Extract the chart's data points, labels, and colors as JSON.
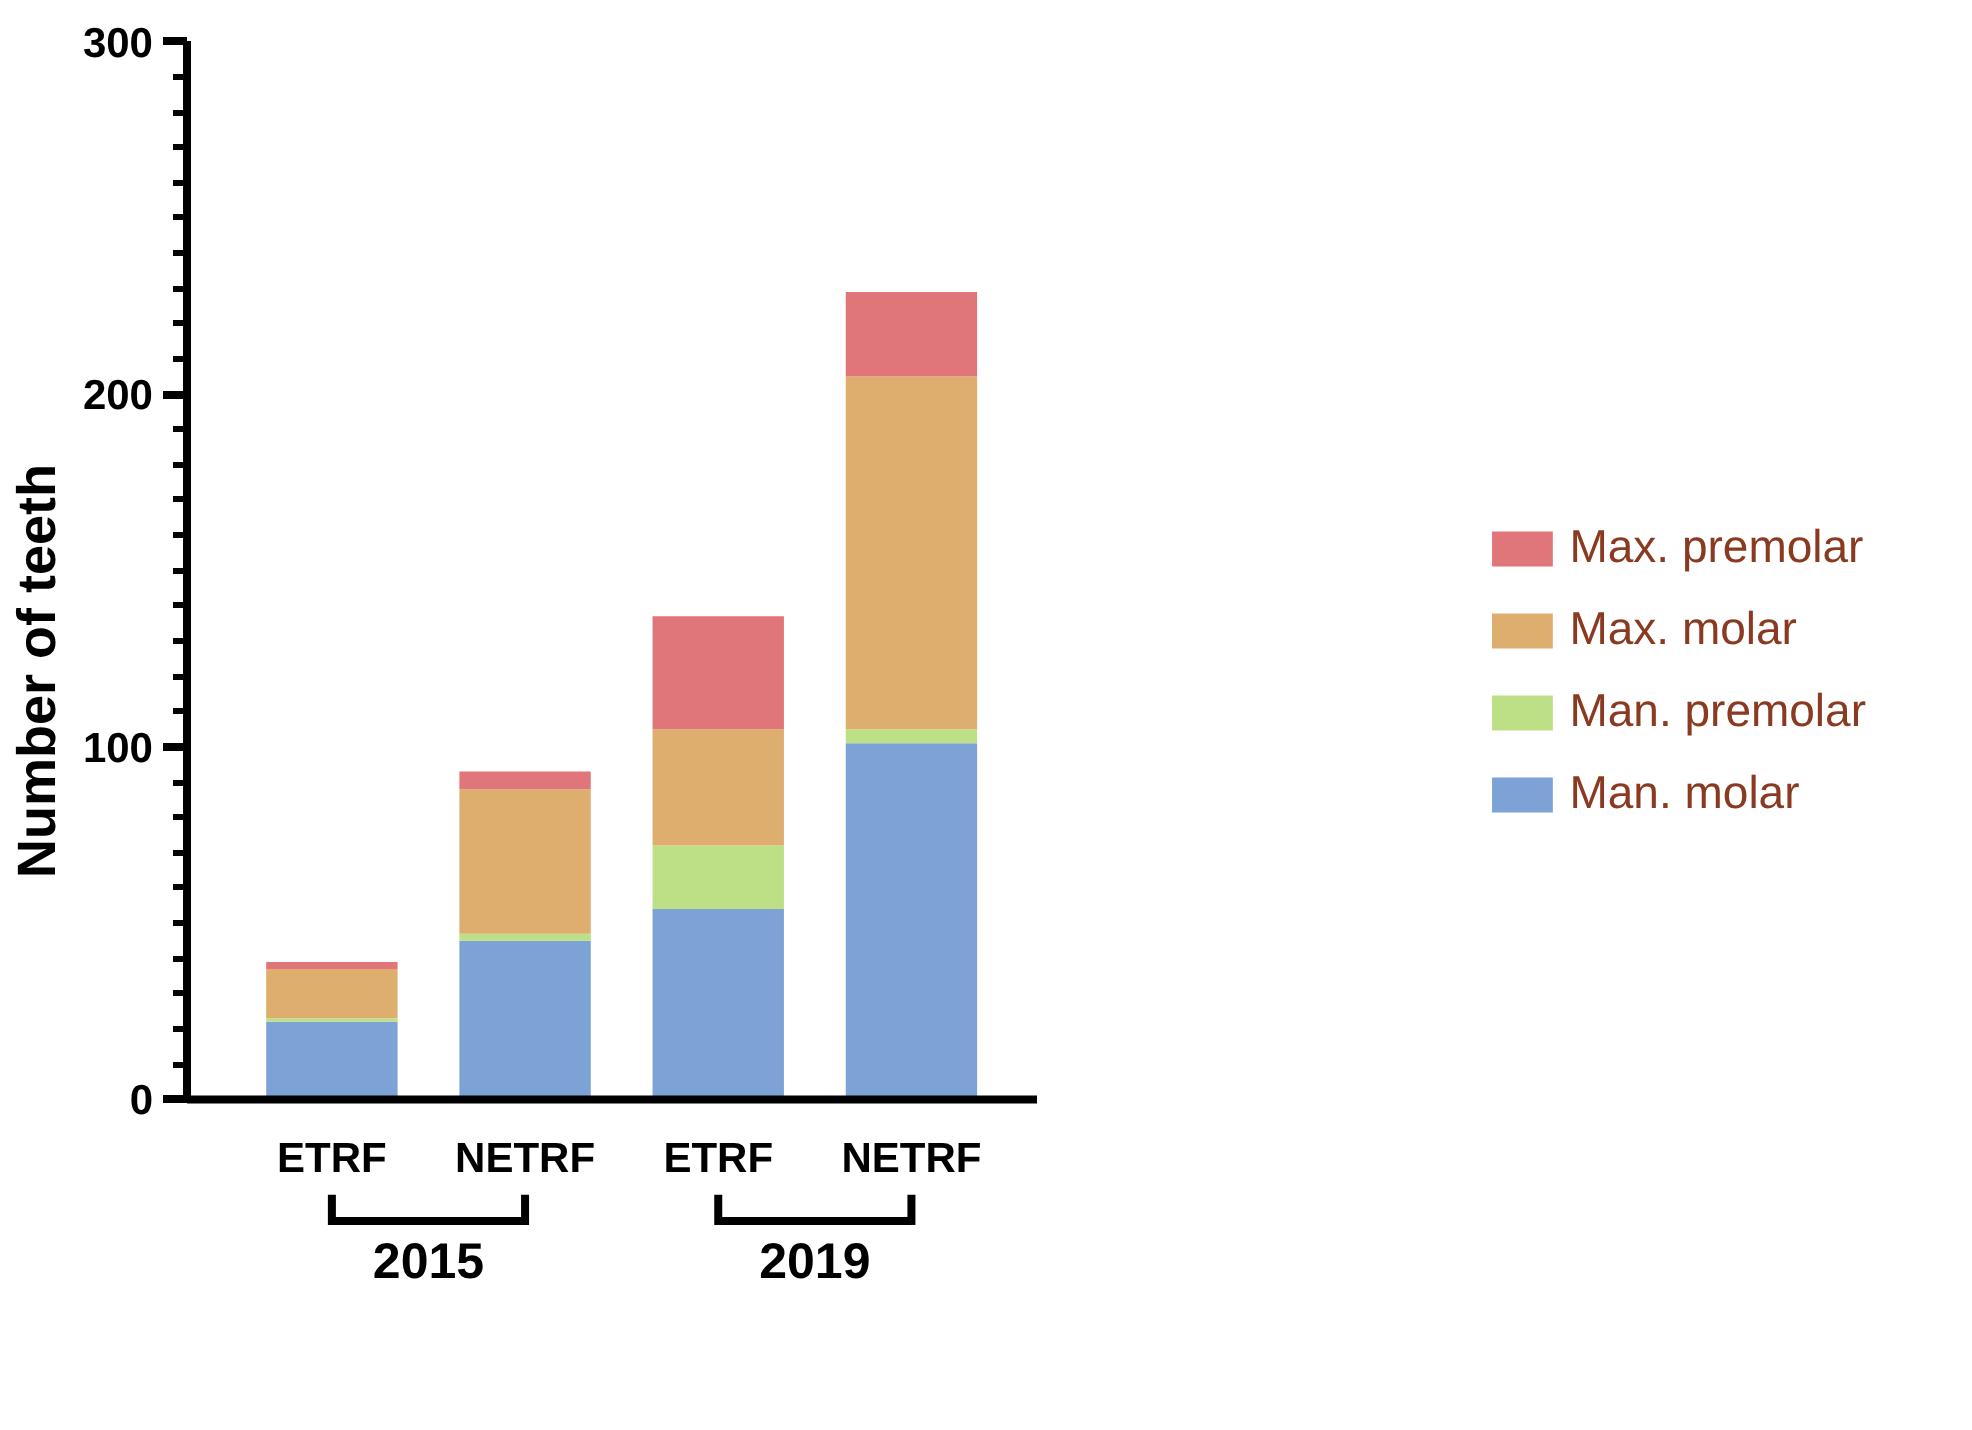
{
  "chart_data": {
    "type": "bar",
    "stacked": true,
    "ylabel": "Number of teeth",
    "categories": [
      "ETRF",
      "NETRF",
      "ETRF",
      "NETRF"
    ],
    "series": [
      {
        "name": "Man. molar",
        "color": "#7da2d6",
        "values": [
          22,
          45,
          54,
          101
        ]
      },
      {
        "name": "Man. premolar",
        "color": "#bddf85",
        "values": [
          1,
          2,
          18,
          4
        ]
      },
      {
        "name": "Max. molar",
        "color": "#ddae6e",
        "values": [
          14,
          41,
          33,
          100
        ]
      },
      {
        "name": "Max. premolar",
        "color": "#e0767a",
        "values": [
          2,
          5,
          32,
          24
        ]
      }
    ],
    "annotations": [
      "2015",
      "2019"
    ],
    "ylim": [
      0,
      300
    ],
    "yticks": [
      0,
      100,
      200,
      300
    ],
    "grid": false,
    "legend": "right"
  }
}
